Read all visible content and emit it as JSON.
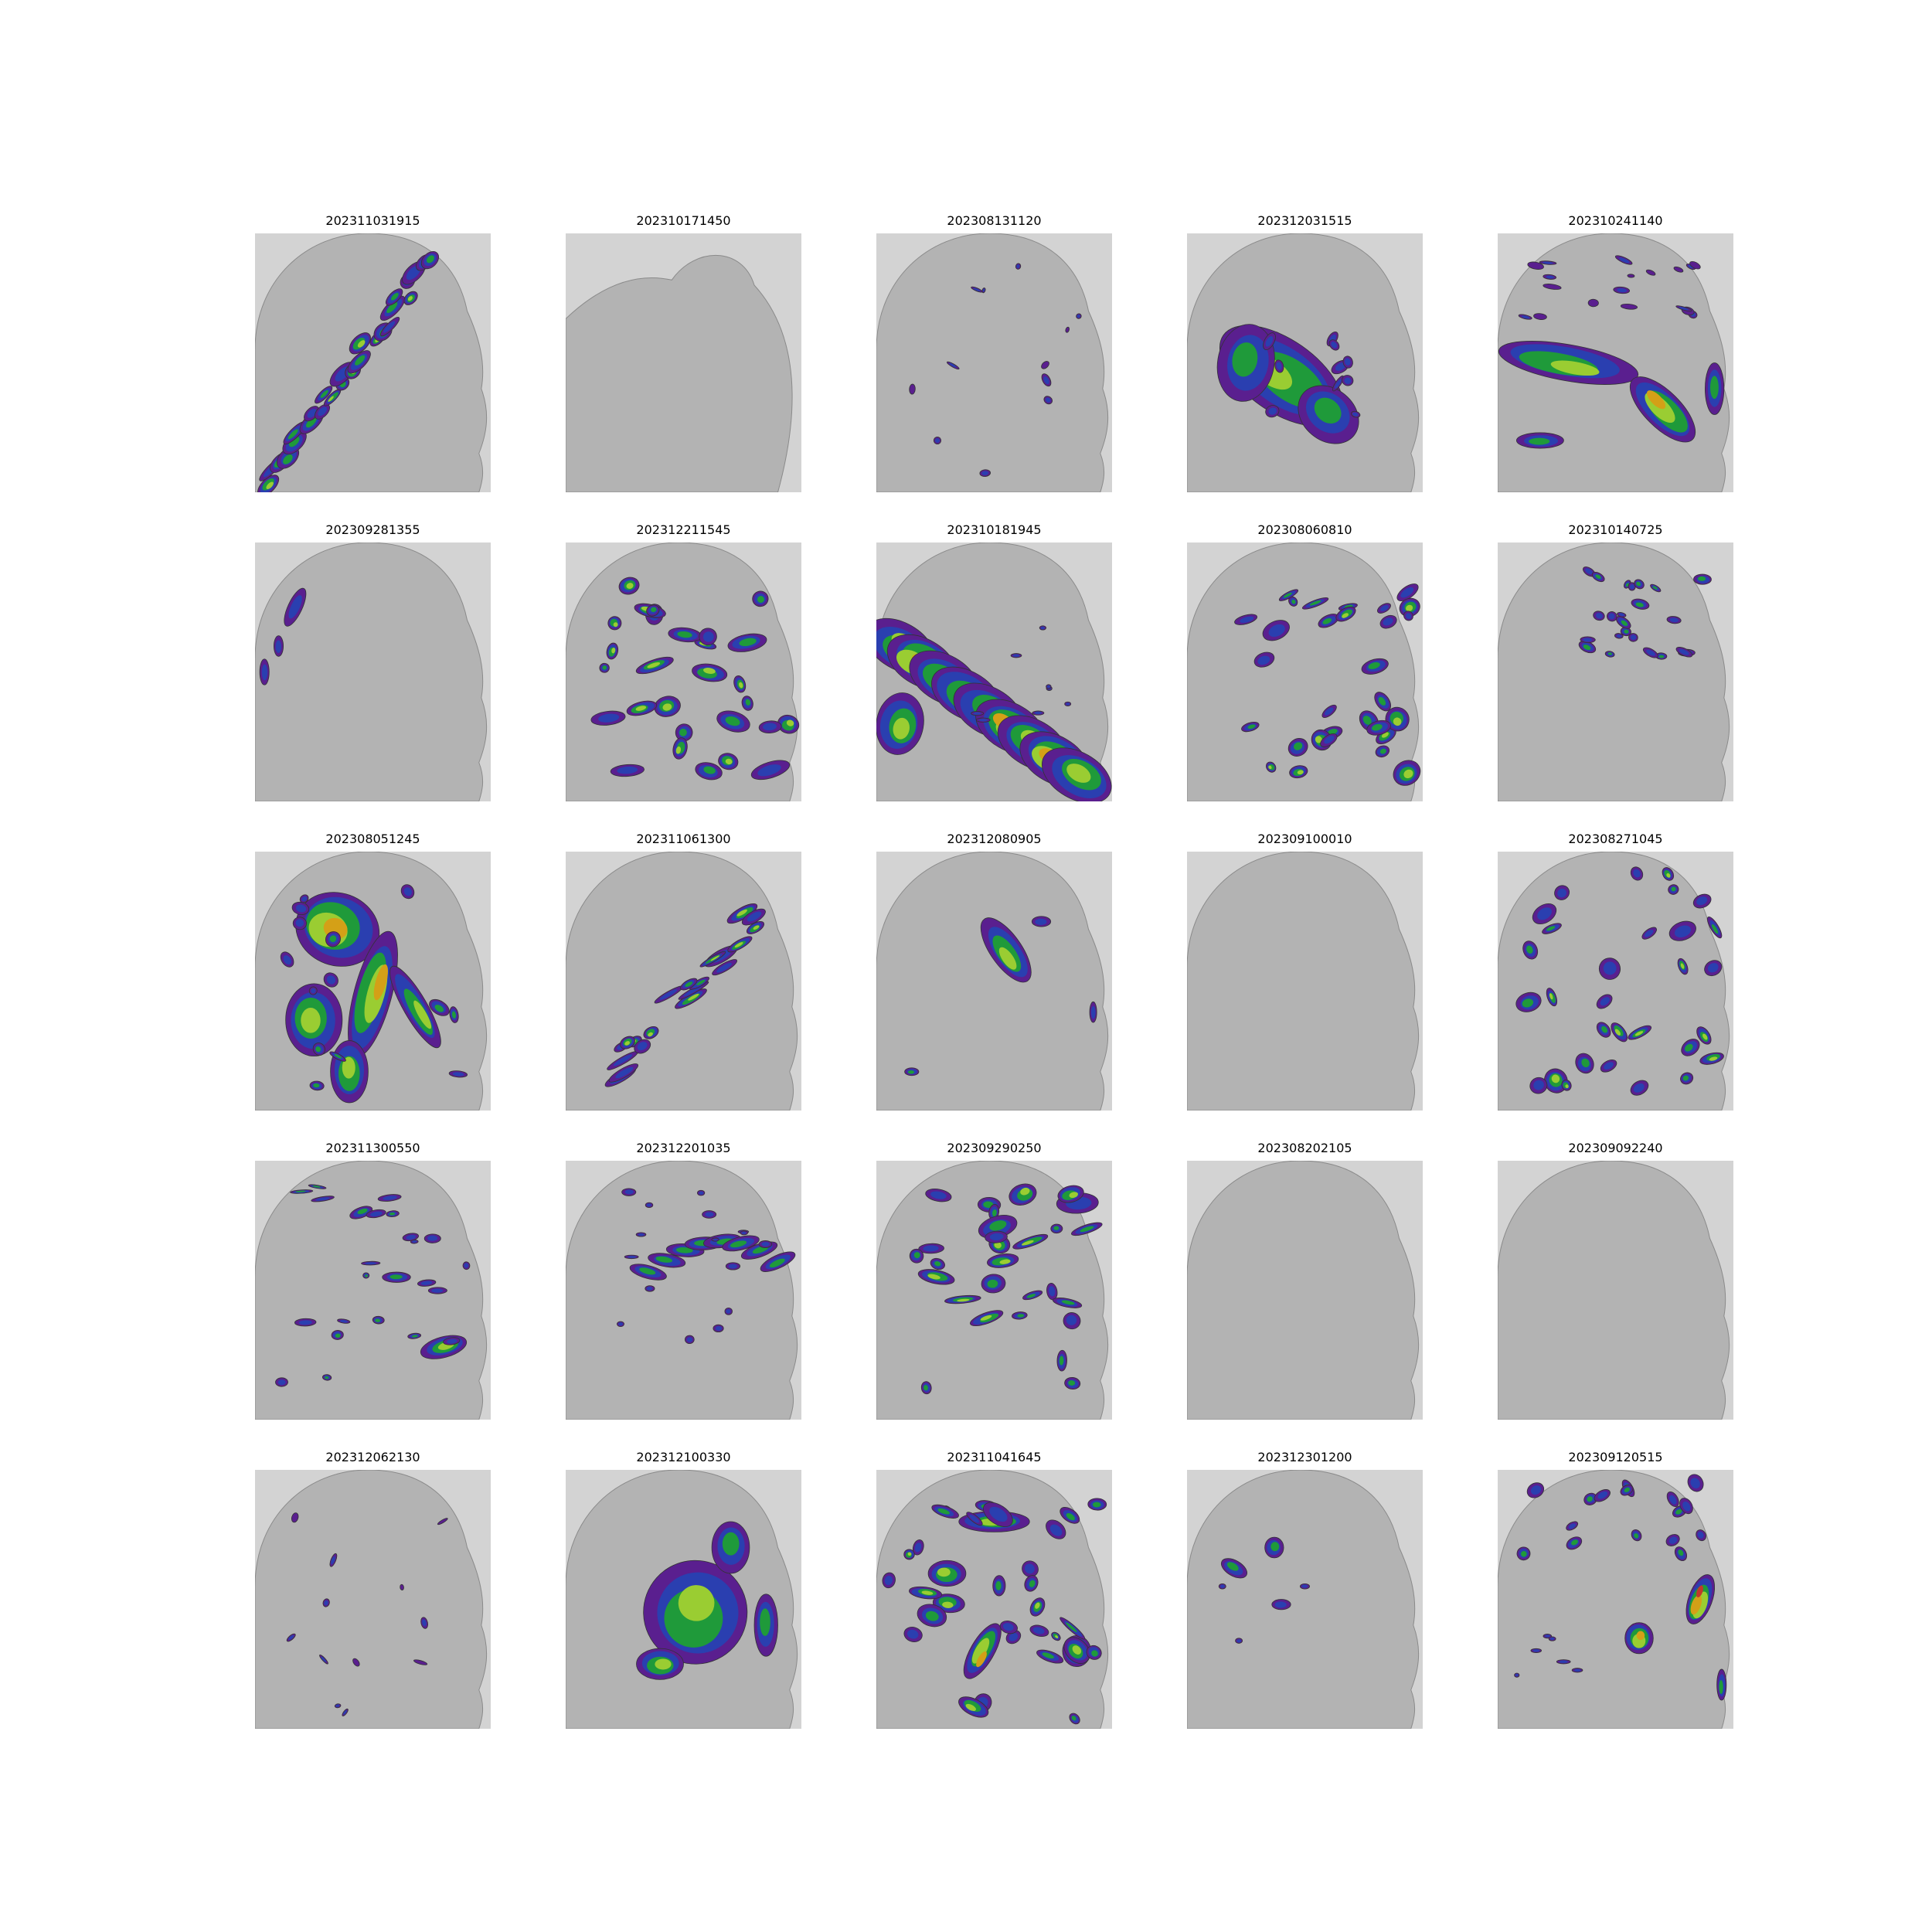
{
  "figure": {
    "panels": [
      {
        "title": "202311031915",
        "pattern": "diag-band"
      },
      {
        "title": "202310171450",
        "pattern": "none"
      },
      {
        "title": "202308131120",
        "pattern": "sparse"
      },
      {
        "title": "202312031515",
        "pattern": "large-mass"
      },
      {
        "title": "202310241140",
        "pattern": "horizontal-band"
      },
      {
        "title": "202309281355",
        "pattern": "edge-cells"
      },
      {
        "title": "202312211545",
        "pattern": "scattered-mid"
      },
      {
        "title": "202310181945",
        "pattern": "big-band"
      },
      {
        "title": "202308060810",
        "pattern": "vertical-cells"
      },
      {
        "title": "202310140725",
        "pattern": "top-scattered"
      },
      {
        "title": "202308051245",
        "pattern": "heavy-complex"
      },
      {
        "title": "202311061300",
        "pattern": "diag-lines"
      },
      {
        "title": "202312080905",
        "pattern": "single-cell"
      },
      {
        "title": "202309100010",
        "pattern": "none"
      },
      {
        "title": "202308271045",
        "pattern": "vertical-cells"
      },
      {
        "title": "202311300550",
        "pattern": "scattered-bands"
      },
      {
        "title": "202312201035",
        "pattern": "arc-band"
      },
      {
        "title": "202309290250",
        "pattern": "scattered-mid"
      },
      {
        "title": "202308202105",
        "pattern": "none"
      },
      {
        "title": "202309092240",
        "pattern": "none"
      },
      {
        "title": "202312062130",
        "pattern": "sparse"
      },
      {
        "title": "202312100330",
        "pattern": "swirl"
      },
      {
        "title": "202311041645",
        "pattern": "heavy-scattered"
      },
      {
        "title": "202312301200",
        "pattern": "few-cells"
      },
      {
        "title": "202309120515",
        "pattern": "right-cells"
      }
    ],
    "colors": {
      "background": "#d3d3d3",
      "coverage": "#b3b3b3",
      "coverage_edge": "#8a8a8a",
      "echo_weak": "#5a1f8f",
      "echo_low": "#2a3fb0",
      "echo_mid": "#1f9a3a",
      "echo_high": "#9acd32",
      "echo_strong": "#d4a017",
      "echo_peak": "#c0392b"
    }
  }
}
